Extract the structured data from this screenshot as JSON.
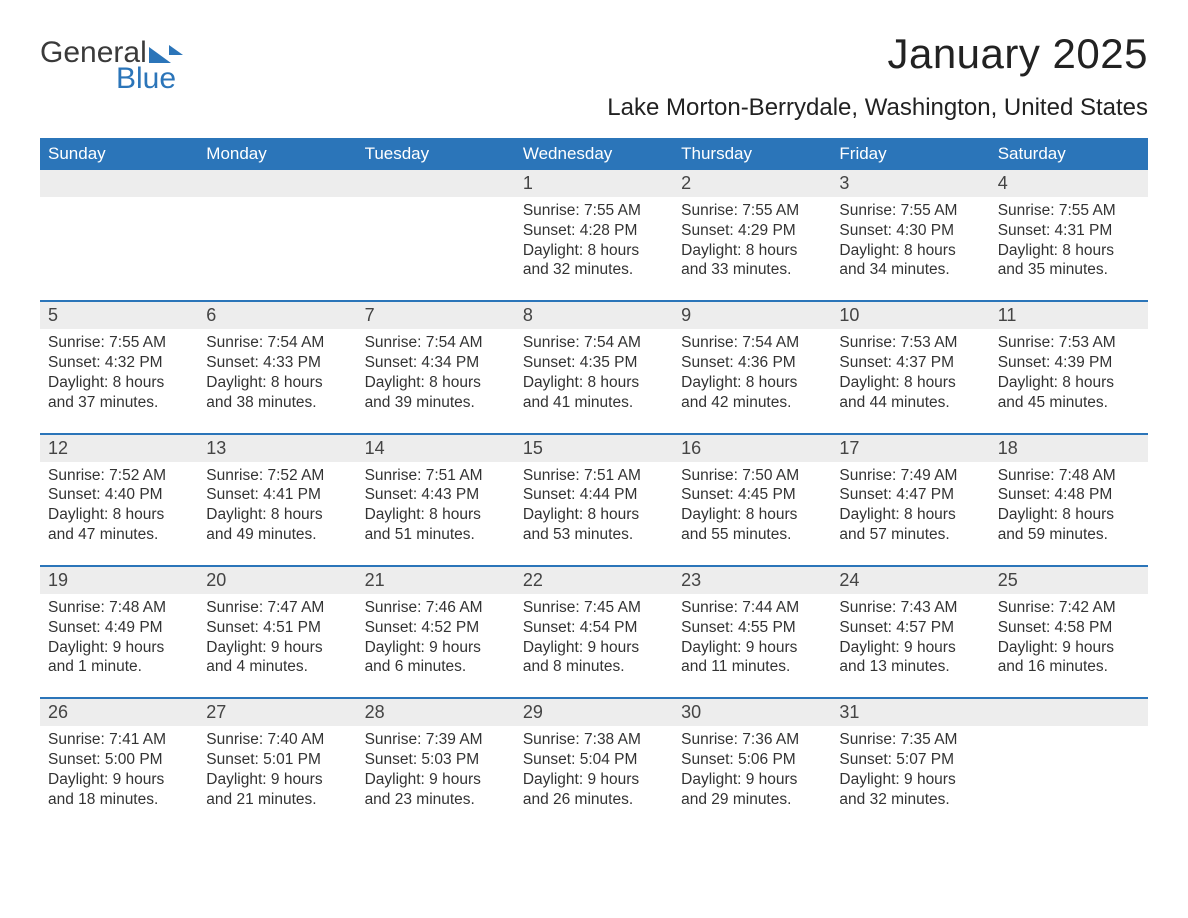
{
  "brand": {
    "part1": "General",
    "part2": "Blue"
  },
  "title": "January 2025",
  "location": "Lake Morton-Berrydale, Washington, United States",
  "colors": {
    "header_bg": "#2b75b9",
    "header_text": "#ffffff",
    "daynum_bg": "#ededed",
    "row_border": "#2b75b9",
    "text": "#333333",
    "background": "#ffffff"
  },
  "weekdays": [
    "Sunday",
    "Monday",
    "Tuesday",
    "Wednesday",
    "Thursday",
    "Friday",
    "Saturday"
  ],
  "weeks": [
    [
      null,
      null,
      null,
      {
        "n": "1",
        "sr": "Sunrise: 7:55 AM",
        "ss": "Sunset: 4:28 PM",
        "d1": "Daylight: 8 hours",
        "d2": "and 32 minutes."
      },
      {
        "n": "2",
        "sr": "Sunrise: 7:55 AM",
        "ss": "Sunset: 4:29 PM",
        "d1": "Daylight: 8 hours",
        "d2": "and 33 minutes."
      },
      {
        "n": "3",
        "sr": "Sunrise: 7:55 AM",
        "ss": "Sunset: 4:30 PM",
        "d1": "Daylight: 8 hours",
        "d2": "and 34 minutes."
      },
      {
        "n": "4",
        "sr": "Sunrise: 7:55 AM",
        "ss": "Sunset: 4:31 PM",
        "d1": "Daylight: 8 hours",
        "d2": "and 35 minutes."
      }
    ],
    [
      {
        "n": "5",
        "sr": "Sunrise: 7:55 AM",
        "ss": "Sunset: 4:32 PM",
        "d1": "Daylight: 8 hours",
        "d2": "and 37 minutes."
      },
      {
        "n": "6",
        "sr": "Sunrise: 7:54 AM",
        "ss": "Sunset: 4:33 PM",
        "d1": "Daylight: 8 hours",
        "d2": "and 38 minutes."
      },
      {
        "n": "7",
        "sr": "Sunrise: 7:54 AM",
        "ss": "Sunset: 4:34 PM",
        "d1": "Daylight: 8 hours",
        "d2": "and 39 minutes."
      },
      {
        "n": "8",
        "sr": "Sunrise: 7:54 AM",
        "ss": "Sunset: 4:35 PM",
        "d1": "Daylight: 8 hours",
        "d2": "and 41 minutes."
      },
      {
        "n": "9",
        "sr": "Sunrise: 7:54 AM",
        "ss": "Sunset: 4:36 PM",
        "d1": "Daylight: 8 hours",
        "d2": "and 42 minutes."
      },
      {
        "n": "10",
        "sr": "Sunrise: 7:53 AM",
        "ss": "Sunset: 4:37 PM",
        "d1": "Daylight: 8 hours",
        "d2": "and 44 minutes."
      },
      {
        "n": "11",
        "sr": "Sunrise: 7:53 AM",
        "ss": "Sunset: 4:39 PM",
        "d1": "Daylight: 8 hours",
        "d2": "and 45 minutes."
      }
    ],
    [
      {
        "n": "12",
        "sr": "Sunrise: 7:52 AM",
        "ss": "Sunset: 4:40 PM",
        "d1": "Daylight: 8 hours",
        "d2": "and 47 minutes."
      },
      {
        "n": "13",
        "sr": "Sunrise: 7:52 AM",
        "ss": "Sunset: 4:41 PM",
        "d1": "Daylight: 8 hours",
        "d2": "and 49 minutes."
      },
      {
        "n": "14",
        "sr": "Sunrise: 7:51 AM",
        "ss": "Sunset: 4:43 PM",
        "d1": "Daylight: 8 hours",
        "d2": "and 51 minutes."
      },
      {
        "n": "15",
        "sr": "Sunrise: 7:51 AM",
        "ss": "Sunset: 4:44 PM",
        "d1": "Daylight: 8 hours",
        "d2": "and 53 minutes."
      },
      {
        "n": "16",
        "sr": "Sunrise: 7:50 AM",
        "ss": "Sunset: 4:45 PM",
        "d1": "Daylight: 8 hours",
        "d2": "and 55 minutes."
      },
      {
        "n": "17",
        "sr": "Sunrise: 7:49 AM",
        "ss": "Sunset: 4:47 PM",
        "d1": "Daylight: 8 hours",
        "d2": "and 57 minutes."
      },
      {
        "n": "18",
        "sr": "Sunrise: 7:48 AM",
        "ss": "Sunset: 4:48 PM",
        "d1": "Daylight: 8 hours",
        "d2": "and 59 minutes."
      }
    ],
    [
      {
        "n": "19",
        "sr": "Sunrise: 7:48 AM",
        "ss": "Sunset: 4:49 PM",
        "d1": "Daylight: 9 hours",
        "d2": "and 1 minute."
      },
      {
        "n": "20",
        "sr": "Sunrise: 7:47 AM",
        "ss": "Sunset: 4:51 PM",
        "d1": "Daylight: 9 hours",
        "d2": "and 4 minutes."
      },
      {
        "n": "21",
        "sr": "Sunrise: 7:46 AM",
        "ss": "Sunset: 4:52 PM",
        "d1": "Daylight: 9 hours",
        "d2": "and 6 minutes."
      },
      {
        "n": "22",
        "sr": "Sunrise: 7:45 AM",
        "ss": "Sunset: 4:54 PM",
        "d1": "Daylight: 9 hours",
        "d2": "and 8 minutes."
      },
      {
        "n": "23",
        "sr": "Sunrise: 7:44 AM",
        "ss": "Sunset: 4:55 PM",
        "d1": "Daylight: 9 hours",
        "d2": "and 11 minutes."
      },
      {
        "n": "24",
        "sr": "Sunrise: 7:43 AM",
        "ss": "Sunset: 4:57 PM",
        "d1": "Daylight: 9 hours",
        "d2": "and 13 minutes."
      },
      {
        "n": "25",
        "sr": "Sunrise: 7:42 AM",
        "ss": "Sunset: 4:58 PM",
        "d1": "Daylight: 9 hours",
        "d2": "and 16 minutes."
      }
    ],
    [
      {
        "n": "26",
        "sr": "Sunrise: 7:41 AM",
        "ss": "Sunset: 5:00 PM",
        "d1": "Daylight: 9 hours",
        "d2": "and 18 minutes."
      },
      {
        "n": "27",
        "sr": "Sunrise: 7:40 AM",
        "ss": "Sunset: 5:01 PM",
        "d1": "Daylight: 9 hours",
        "d2": "and 21 minutes."
      },
      {
        "n": "28",
        "sr": "Sunrise: 7:39 AM",
        "ss": "Sunset: 5:03 PM",
        "d1": "Daylight: 9 hours",
        "d2": "and 23 minutes."
      },
      {
        "n": "29",
        "sr": "Sunrise: 7:38 AM",
        "ss": "Sunset: 5:04 PM",
        "d1": "Daylight: 9 hours",
        "d2": "and 26 minutes."
      },
      {
        "n": "30",
        "sr": "Sunrise: 7:36 AM",
        "ss": "Sunset: 5:06 PM",
        "d1": "Daylight: 9 hours",
        "d2": "and 29 minutes."
      },
      {
        "n": "31",
        "sr": "Sunrise: 7:35 AM",
        "ss": "Sunset: 5:07 PM",
        "d1": "Daylight: 9 hours",
        "d2": "and 32 minutes."
      },
      null
    ]
  ]
}
